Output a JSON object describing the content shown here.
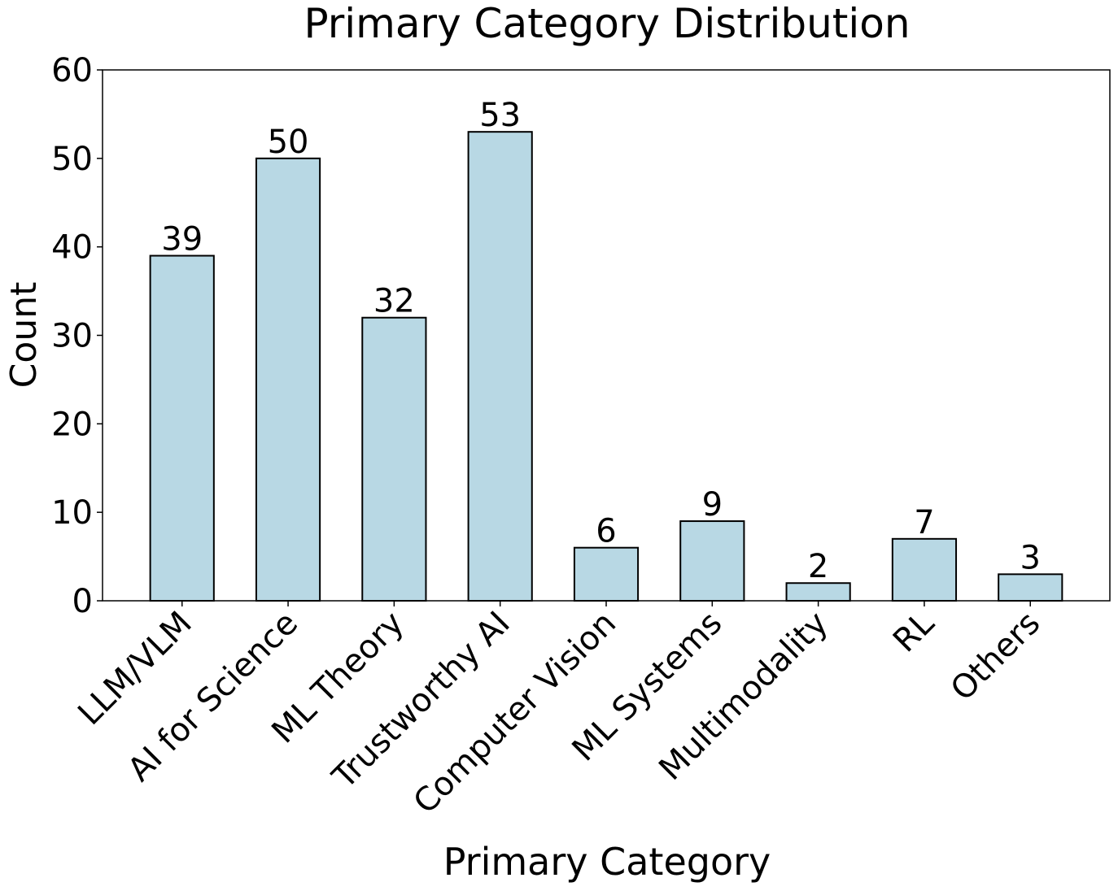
{
  "chart_data": {
    "type": "bar",
    "title": "Primary Category Distribution",
    "xlabel": "Primary Category",
    "ylabel": "Count",
    "categories": [
      "LLM/VLM",
      "AI for Science",
      "ML Theory",
      "Trustworthy AI",
      "Computer Vision",
      "ML Systems",
      "Multimodality",
      "RL",
      "Others"
    ],
    "values": [
      39,
      50,
      32,
      53,
      6,
      9,
      2,
      7,
      3
    ],
    "ylim": [
      0,
      60
    ],
    "yticks": [
      0,
      10,
      20,
      30,
      40,
      50,
      60
    ],
    "bar_color": "#b8d8e4",
    "edge_color": "#000000",
    "grid": false,
    "legend": "none",
    "data_labels": true
  }
}
